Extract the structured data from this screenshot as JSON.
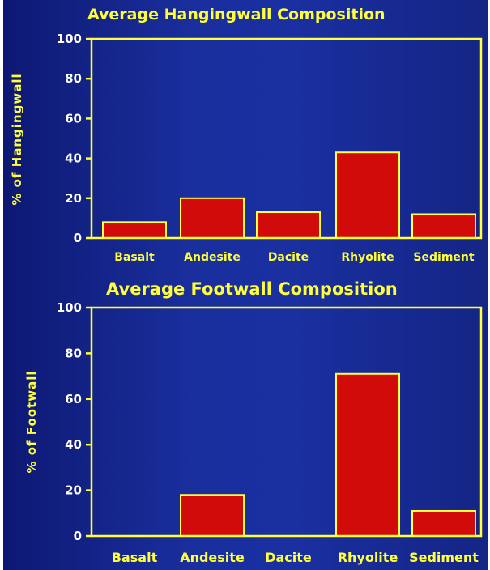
{
  "colors": {
    "bar": "#d10a0a",
    "axis": "#ffff3a",
    "title": "#ffff3a"
  },
  "chart_data": [
    {
      "type": "bar",
      "title": "Average Hangingwall Composition",
      "ylabel": "% of Hangingwall",
      "xlabel": "",
      "categories": [
        "Basalt",
        "Andesite",
        "Dacite",
        "Rhyolite",
        "Sediment"
      ],
      "values": [
        8,
        20,
        13,
        43,
        12
      ],
      "ylim": [
        0,
        100
      ],
      "yticks": [
        0,
        20,
        40,
        60,
        80,
        100
      ],
      "grid": false,
      "legend": "none"
    },
    {
      "type": "bar",
      "title": "Average Footwall Composition",
      "ylabel": "% of Footwall",
      "xlabel": "",
      "categories": [
        "Basalt",
        "Andesite",
        "Dacite",
        "Rhyolite",
        "Sediment"
      ],
      "values": [
        0,
        18,
        0,
        71,
        11
      ],
      "ylim": [
        0,
        100
      ],
      "yticks": [
        0,
        20,
        40,
        60,
        80,
        100
      ],
      "grid": false,
      "legend": "none"
    }
  ]
}
